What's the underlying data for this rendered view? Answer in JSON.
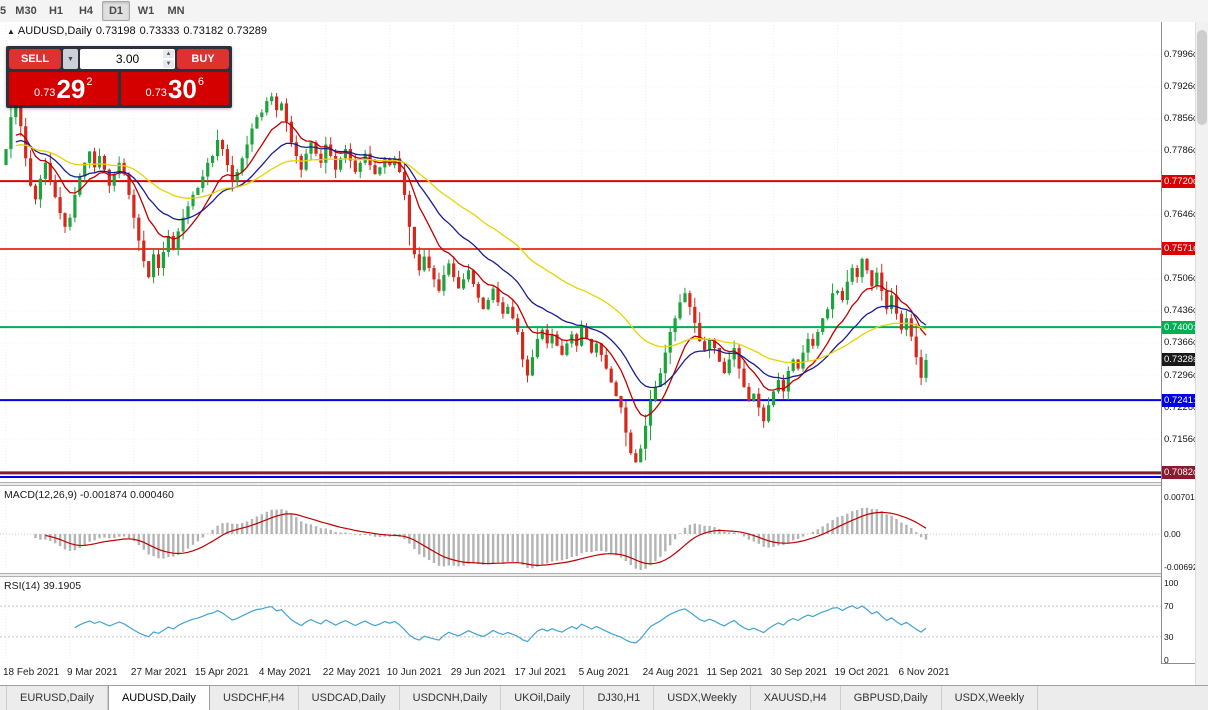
{
  "toolbar": {
    "partial_left": "5",
    "timeframes": [
      "M30",
      "H1",
      "H4",
      "D1",
      "W1",
      "MN"
    ],
    "active": "D1"
  },
  "chart_header": {
    "marker": "▲",
    "symbol": "AUDUSD,Daily",
    "open": "0.73198",
    "high": "0.73333",
    "low": "0.73182",
    "close": "0.73289"
  },
  "trade_panel": {
    "sell_label": "SELL",
    "buy_label": "BUY",
    "lot_value": "3.00",
    "sell_price": {
      "prefix": "0.73",
      "big": "29",
      "sup": "2"
    },
    "buy_price": {
      "prefix": "0.73",
      "big": "30",
      "sup": "6"
    }
  },
  "icons": {
    "dropdown": "▼",
    "spin_up": "▲",
    "spin_down": "▼"
  },
  "price_axis_labels": [
    "0.79960",
    "0.79260",
    "0.78560",
    "0.77860",
    "0.76460",
    "0.75060",
    "0.74360",
    "0.73660",
    "0.72960",
    "0.72260",
    "0.71560"
  ],
  "levels": [
    {
      "label": "0.77200",
      "price": 0.772,
      "color": "#dd0000",
      "line": true,
      "lw": 2
    },
    {
      "label": "0.75716",
      "price": 0.75716,
      "color": "#dd0000",
      "line": true,
      "lw": 1.5
    },
    {
      "label": "0.74007",
      "price": 0.74007,
      "color": "#00b050",
      "line": true,
      "lw": 2
    },
    {
      "label": "0.73289",
      "price": 0.73289,
      "color": "#1a1a1a",
      "line": false,
      "lw": 0
    },
    {
      "label": "0.72411",
      "price": 0.72411,
      "color": "#0000e6",
      "line": true,
      "lw": 2
    },
    {
      "label": "0.70820",
      "price": 0.7082,
      "color": "#8b1a2f",
      "line": true,
      "lw": 3
    },
    {
      "label": "",
      "price": 0.7073,
      "color": "#0000e6",
      "line": true,
      "lw": 2
    }
  ],
  "macd_panel": {
    "label": "MACD(12,26,9) -0.001874 0.000460",
    "scale": [
      "0.007015",
      "0.00",
      "-0.006923"
    ]
  },
  "rsi_panel": {
    "label": "RSI(14) 39.1905",
    "scale": [
      "100",
      "70",
      "30",
      "0"
    ]
  },
  "date_axis": [
    "18 Feb 2021",
    "9 Mar 2021",
    "27 Mar 2021",
    "15 Apr 2021",
    "4 May 2021",
    "22 May 2021",
    "10 Jun 2021",
    "29 Jun 2021",
    "17 Jul 2021",
    "5 Aug 2021",
    "24 Aug 2021",
    "11 Sep 2021",
    "30 Sep 2021",
    "19 Oct 2021",
    "6 Nov 2021"
  ],
  "tabs": [
    "EURUSD,Daily",
    "AUDUSD,Daily",
    "USDCHF,H4",
    "USDCAD,Daily",
    "USDCNH,Daily",
    "UKOil,Daily",
    "DJ30,H1",
    "USDX,Weekly",
    "XAUUSD,H4",
    "GBPUSD,Daily",
    "USDX,Weekly"
  ],
  "active_tab_index": 1,
  "chart_data": {
    "type": "candlestick",
    "symbol": "AUDUSD",
    "timeframe": "Daily",
    "up_color": "#1da33c",
    "down_color": "#d5281c",
    "candles_per_x_label": 13,
    "y_range": [
      0.7062,
      0.8068
    ],
    "closes": [
      0.779,
      0.786,
      0.79,
      0.784,
      0.777,
      0.771,
      0.768,
      0.7725,
      0.776,
      0.772,
      0.7685,
      0.765,
      0.762,
      0.764,
      0.769,
      0.773,
      0.776,
      0.7785,
      0.775,
      0.7775,
      0.7745,
      0.771,
      0.7735,
      0.776,
      0.7735,
      0.769,
      0.764,
      0.759,
      0.7545,
      0.751,
      0.756,
      0.753,
      0.7565,
      0.76,
      0.757,
      0.761,
      0.764,
      0.7665,
      0.769,
      0.7705,
      0.773,
      0.776,
      0.7775,
      0.781,
      0.779,
      0.7755,
      0.772,
      0.774,
      0.777,
      0.78,
      0.7835,
      0.786,
      0.787,
      0.7895,
      0.7905,
      0.7875,
      0.789,
      0.785,
      0.7805,
      0.7775,
      0.7745,
      0.778,
      0.7805,
      0.778,
      0.776,
      0.78,
      0.7775,
      0.7745,
      0.777,
      0.779,
      0.7765,
      0.774,
      0.776,
      0.778,
      0.7755,
      0.7735,
      0.775,
      0.777,
      0.7755,
      0.777,
      0.774,
      0.769,
      0.762,
      0.756,
      0.7525,
      0.7555,
      0.753,
      0.7505,
      0.748,
      0.7515,
      0.754,
      0.751,
      0.7485,
      0.7505,
      0.7525,
      0.7495,
      0.7465,
      0.744,
      0.746,
      0.7485,
      0.7455,
      0.743,
      0.7445,
      0.742,
      0.739,
      0.733,
      0.7295,
      0.7335,
      0.7375,
      0.7395,
      0.7365,
      0.7385,
      0.736,
      0.734,
      0.7365,
      0.7385,
      0.736,
      0.74,
      0.7375,
      0.7345,
      0.7365,
      0.734,
      0.731,
      0.728,
      0.725,
      0.7225,
      0.717,
      0.7125,
      0.7105,
      0.7135,
      0.7185,
      0.724,
      0.727,
      0.73,
      0.7345,
      0.739,
      0.742,
      0.7455,
      0.7475,
      0.7445,
      0.741,
      0.737,
      0.735,
      0.7375,
      0.7355,
      0.7325,
      0.73,
      0.733,
      0.7355,
      0.731,
      0.727,
      0.724,
      0.7255,
      0.7225,
      0.7195,
      0.723,
      0.726,
      0.7285,
      0.726,
      0.7305,
      0.733,
      0.731,
      0.7345,
      0.7375,
      0.736,
      0.739,
      0.742,
      0.744,
      0.7475,
      0.748,
      0.746,
      0.75,
      0.753,
      0.751,
      0.755,
      0.7525,
      0.749,
      0.752,
      0.748,
      0.744,
      0.747,
      0.743,
      0.7395,
      0.742,
      0.738,
      0.7335,
      0.729,
      0.73289
    ],
    "moving_averages": [
      {
        "period": 10,
        "color": "#c00000"
      },
      {
        "period": 21,
        "color": "#1c1c8f"
      },
      {
        "period": 44,
        "color": "#e6d400"
      }
    ],
    "indicators": {
      "macd": {
        "fast": 12,
        "slow": 26,
        "signal": 9,
        "histogram_color": "#b4b4b4",
        "signal_color": "#c00000"
      },
      "rsi": {
        "period": 14,
        "color": "#42a3d5",
        "levels": [
          70,
          30
        ]
      }
    }
  }
}
